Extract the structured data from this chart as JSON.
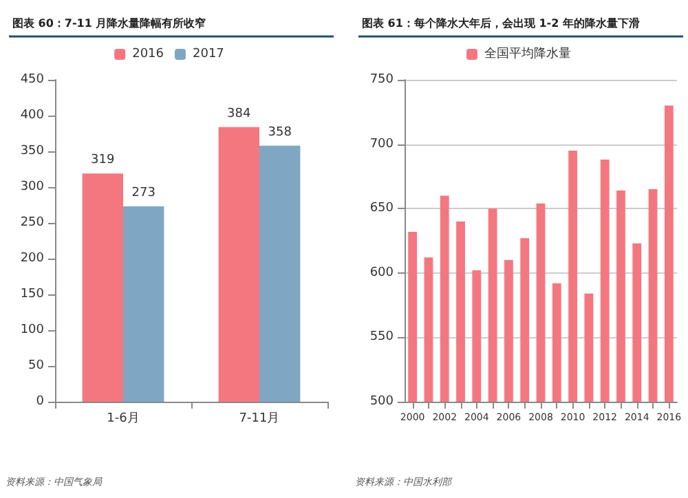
{
  "chart_data": [
    {
      "type": "bar",
      "title": "图表 60：7-11 月降水量降幅有所收窄",
      "categories": [
        "1-6月",
        "7-11月"
      ],
      "series": [
        {
          "name": "2016",
          "color": "#f4777f",
          "values": [
            319,
            384
          ]
        },
        {
          "name": "2017",
          "color": "#7fa7c4",
          "values": [
            273,
            358
          ]
        }
      ],
      "ylim": [
        0,
        450
      ],
      "yticks": [
        0,
        50,
        100,
        150,
        200,
        250,
        300,
        350,
        400,
        450
      ],
      "data_labels": true,
      "legend": "top",
      "grid": false,
      "annotations": [
        "资料来源：中国气象局"
      ]
    },
    {
      "type": "bar",
      "title": "图表 61：每个降水大年后，会出现 1-2 年的降水量下滑",
      "categories": [
        "2000",
        null,
        "2002",
        null,
        "2004",
        null,
        "2006",
        null,
        "2008",
        null,
        "2010",
        null,
        "2012",
        null,
        "2014",
        null,
        "2016"
      ],
      "series": [
        {
          "name": "全国平均降水量",
          "color": "#f4777f",
          "values": [
            632,
            612,
            660,
            640,
            602,
            650,
            610,
            627,
            654,
            592,
            695,
            584,
            688,
            664,
            623,
            665,
            730
          ]
        }
      ],
      "ylim": [
        500,
        750
      ],
      "yticks": [
        500,
        550,
        600,
        650,
        700,
        750
      ],
      "legend": "top",
      "grid": "y",
      "annotations": [
        "资料来源：中国水利部"
      ]
    }
  ]
}
